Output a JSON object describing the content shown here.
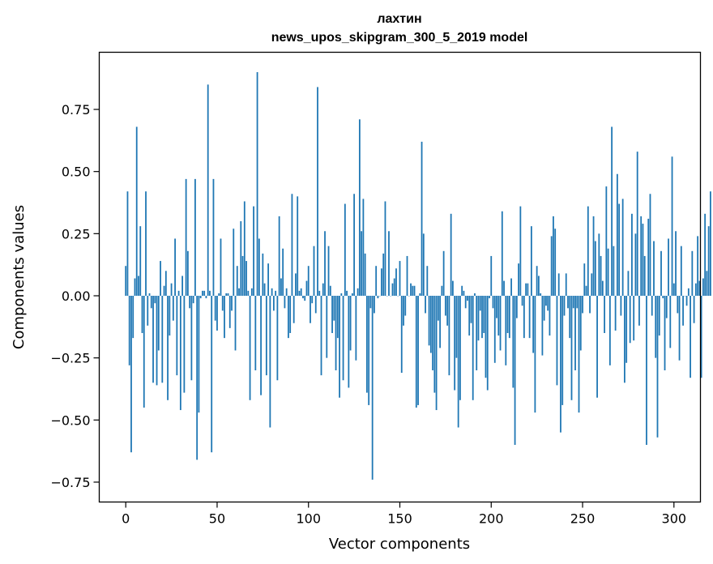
{
  "chart_data": {
    "type": "bar",
    "title_line1": "лахтин",
    "title_line2": "news_upos_skipgram_300_5_2019 model",
    "xlabel": "Vector components",
    "ylabel": "Components values",
    "xlim": [
      -14.5,
      314.5
    ],
    "ylim": [
      -0.83,
      0.98
    ],
    "xticks": [
      0,
      50,
      100,
      150,
      200,
      250,
      300
    ],
    "xtick_labels": [
      "0",
      "50",
      "100",
      "150",
      "200",
      "250",
      "300"
    ],
    "yticks": [
      -0.75,
      -0.5,
      -0.25,
      0.0,
      0.25,
      0.5,
      0.75
    ],
    "ytick_labels": [
      "−0.75",
      "−0.50",
      "−0.25",
      "0.00",
      "0.25",
      "0.50",
      "0.75"
    ],
    "bar_color": "#1f77b4",
    "grid": false,
    "values": [
      0.12,
      0.42,
      -0.28,
      -0.63,
      -0.17,
      0.07,
      0.68,
      0.08,
      0.28,
      -0.15,
      -0.45,
      0.42,
      -0.12,
      0.01,
      -0.05,
      -0.35,
      -0.03,
      -0.36,
      -0.22,
      0.14,
      -0.35,
      0.04,
      0.1,
      -0.42,
      -0.16,
      0.05,
      -0.1,
      0.23,
      -0.32,
      0.02,
      -0.46,
      0.08,
      -0.39,
      0.47,
      0.18,
      -0.05,
      -0.34,
      -0.03,
      0.47,
      -0.66,
      -0.47,
      -0.01,
      0.02,
      0.02,
      -0.01,
      0.85,
      0.02,
      -0.63,
      0.47,
      -0.1,
      -0.14,
      0.01,
      0.23,
      -0.06,
      -0.17,
      0.01,
      0.01,
      -0.13,
      -0.06,
      0.27,
      -0.22,
      0.12,
      0.03,
      0.3,
      0.16,
      0.38,
      0.14,
      0.02,
      -0.42,
      0.03,
      0.36,
      -0.3,
      0.9,
      0.23,
      -0.4,
      0.17,
      0.05,
      -0.32,
      0.13,
      -0.53,
      0.03,
      -0.06,
      0.02,
      -0.34,
      0.32,
      0.07,
      0.19,
      -0.05,
      0.03,
      -0.17,
      -0.15,
      0.41,
      -0.11,
      0.09,
      0.4,
      0.02,
      0.03,
      -0.01,
      -0.02,
      0.06,
      0.12,
      -0.11,
      -0.03,
      0.2,
      -0.07,
      0.84,
      0.02,
      -0.32,
      0.05,
      0.26,
      -0.25,
      0.2,
      0.04,
      -0.15,
      -0.1,
      -0.3,
      -0.17,
      -0.41,
      0.01,
      -0.34,
      0.37,
      0.02,
      -0.37,
      -0.22,
      0.01,
      0.41,
      -0.26,
      0.03,
      0.71,
      0.26,
      0.39,
      0.17,
      -0.39,
      -0.44,
      -0.05,
      -0.74,
      -0.07,
      0.12,
      -0.01,
      0.0,
      0.11,
      0.17,
      0.38,
      0.0,
      0.26,
      0.0,
      0.05,
      0.07,
      0.11,
      0.0,
      0.14,
      -0.31,
      -0.12,
      -0.08,
      0.16,
      0.0,
      0.05,
      0.04,
      0.04,
      -0.45,
      -0.44,
      0.01,
      0.62,
      0.25,
      -0.07,
      0.12,
      -0.2,
      -0.23,
      -0.3,
      -0.39,
      -0.46,
      -0.1,
      -0.21,
      0.04,
      0.18,
      -0.08,
      -0.12,
      -0.32,
      0.33,
      0.06,
      -0.38,
      -0.25,
      -0.53,
      -0.42,
      0.04,
      0.02,
      -0.05,
      -0.02,
      -0.16,
      -0.11,
      -0.42,
      0.01,
      -0.3,
      -0.18,
      -0.06,
      -0.17,
      -0.15,
      -0.33,
      -0.38,
      -0.01,
      0.16,
      -0.05,
      -0.27,
      -0.09,
      -0.16,
      -0.22,
      0.34,
      0.06,
      -0.28,
      -0.15,
      -0.17,
      0.07,
      -0.37,
      -0.6,
      -0.09,
      0.13,
      0.36,
      -0.04,
      -0.17,
      0.05,
      0.05,
      -0.17,
      0.28,
      -0.23,
      -0.47,
      0.12,
      0.08,
      0.01,
      -0.24,
      -0.1,
      -0.04,
      -0.06,
      -0.16,
      0.24,
      0.32,
      0.27,
      -0.36,
      0.09,
      -0.55,
      -0.44,
      -0.08,
      0.09,
      -0.05,
      -0.17,
      -0.42,
      -0.05,
      -0.3,
      -0.05,
      -0.47,
      -0.22,
      -0.07,
      0.13,
      0.04,
      0.36,
      -0.07,
      0.09,
      0.32,
      0.22,
      -0.41,
      0.25,
      0.16,
      0.06,
      -0.15,
      0.44,
      0.19,
      -0.28,
      0.68,
      0.2,
      -0.14,
      0.49,
      0.37,
      -0.08,
      0.39,
      -0.35,
      -0.27,
      0.1,
      -0.19,
      0.33,
      -0.18,
      0.25,
      0.58,
      -0.12,
      0.32,
      0.29,
      0.16,
      -0.6,
      0.31,
      0.41,
      -0.08,
      0.22,
      -0.25,
      -0.57,
      -0.16,
      0.18,
      -0.01,
      -0.3,
      -0.09,
      0.23,
      -0.21,
      0.56,
      0.05,
      0.26,
      -0.07,
      -0.26,
      0.2,
      -0.12,
      0.0,
      -0.04,
      0.03,
      -0.33,
      0.18,
      -0.11,
      0.05,
      0.24,
      0.06,
      -0.33,
      0.07,
      0.33,
      0.1,
      0.28,
      0.42
    ]
  }
}
